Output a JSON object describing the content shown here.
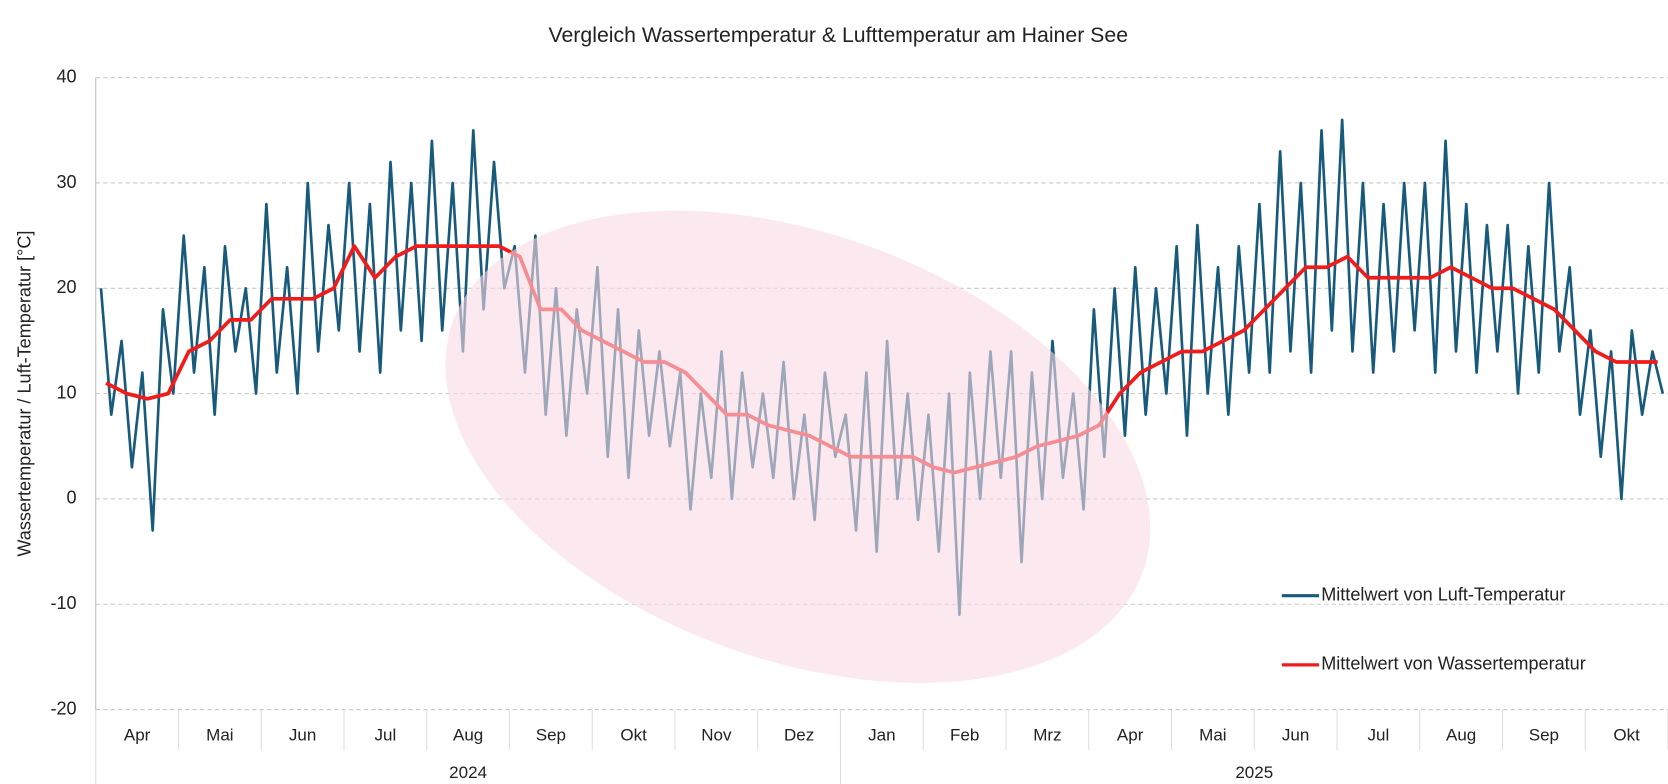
{
  "chart_data": {
    "type": "line",
    "title": "Vergleich Wassertemperatur & Lufttemperatur am Hainer See",
    "y_label": "Wassertemperatur / Luft-Temperatur [°C]",
    "x_groups": [
      {
        "label": "2024",
        "categories": [
          "Apr",
          "Mai",
          "Jun",
          "Jul",
          "Aug",
          "Sep",
          "Okt",
          "Nov",
          "Dez"
        ]
      },
      {
        "label": "2025",
        "categories": [
          "Jan",
          "Feb",
          "Mrz",
          "Apr",
          "Mai",
          "Jun",
          "Jul",
          "Aug",
          "Sep",
          "Okt"
        ]
      }
    ],
    "ylim": [
      -20,
      40
    ],
    "yticks": [
      -20,
      -10,
      0,
      10,
      20,
      30,
      40
    ],
    "grid": true,
    "legend": "lower right",
    "series": [
      {
        "name": "Mittelwert von Luft-Temperatur",
        "color": "#175a7c",
        "values": [
          [
            [
              20,
              8,
              15,
              3,
              12,
              -3,
              18,
              10
            ],
            [
              25,
              12,
              22,
              8,
              24,
              14,
              20,
              10
            ],
            [
              28,
              12,
              22,
              10,
              30,
              14,
              26,
              16
            ],
            [
              30,
              14,
              28,
              12,
              32,
              16,
              30,
              15
            ],
            [
              34,
              16,
              30,
              14,
              35,
              18,
              32,
              20
            ],
            [
              24,
              12,
              25,
              8,
              20,
              6,
              18,
              10
            ],
            [
              22,
              4,
              18,
              2,
              16,
              6,
              14,
              5
            ],
            [
              12,
              -1,
              10,
              2,
              14,
              0,
              12,
              3
            ],
            [
              10,
              2,
              13,
              0,
              8,
              -2,
              12,
              4
            ]
          ],
          [
            [
              8,
              -3,
              12,
              -5,
              15,
              0,
              10,
              -2
            ],
            [
              8,
              -5,
              10,
              -11,
              12,
              0,
              14,
              2
            ],
            [
              14,
              -6,
              12,
              0,
              15,
              2,
              10,
              -1
            ],
            [
              18,
              4,
              20,
              6,
              22,
              8,
              20,
              10
            ],
            [
              24,
              6,
              26,
              10,
              22,
              8,
              24,
              12
            ],
            [
              28,
              12,
              33,
              14,
              30,
              12,
              35,
              16
            ],
            [
              36,
              14,
              30,
              12,
              28,
              14,
              30,
              16
            ],
            [
              30,
              12,
              34,
              14,
              28,
              12,
              26,
              14
            ],
            [
              26,
              10,
              24,
              12,
              30,
              14,
              22,
              8
            ],
            [
              16,
              4,
              14,
              0,
              16,
              8,
              14,
              10
            ]
          ]
        ]
      },
      {
        "name": "Mittelwert von Wassertemperatur",
        "color": "#f01c1c",
        "values": [
          [
            [
              11,
              10,
              9.5,
              10
            ],
            [
              14,
              15,
              17,
              17
            ],
            [
              19,
              19,
              19,
              20
            ],
            [
              24,
              21,
              23,
              24
            ],
            [
              24,
              24,
              24,
              24
            ],
            [
              23,
              18,
              18,
              16
            ],
            [
              15,
              14,
              13,
              13
            ],
            [
              12,
              10,
              8,
              8
            ],
            [
              7,
              6.5,
              6,
              5
            ]
          ],
          [
            [
              4,
              4,
              4,
              4
            ],
            [
              3,
              2.5,
              3,
              3.5
            ],
            [
              4,
              5,
              5.5,
              6
            ],
            [
              7,
              10,
              12,
              13
            ],
            [
              14,
              14,
              15,
              16
            ],
            [
              18,
              20,
              22,
              22
            ],
            [
              23,
              21,
              21,
              21
            ],
            [
              21,
              22,
              21,
              20
            ],
            [
              20,
              19,
              18,
              16
            ],
            [
              14,
              13,
              13,
              13
            ]
          ]
        ]
      }
    ]
  }
}
